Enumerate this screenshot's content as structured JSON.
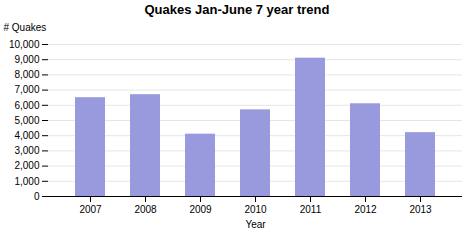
{
  "chart_data": {
    "type": "bar",
    "title": "Quakes Jan-June 7 year trend",
    "xlabel": "Year",
    "ylabel": "# Quakes",
    "categories": [
      "2007",
      "2008",
      "2009",
      "2010",
      "2011",
      "2012",
      "2013"
    ],
    "values": [
      6500,
      6700,
      4100,
      5700,
      9100,
      6100,
      4200
    ],
    "color": "#9999dd",
    "ylim": [
      0,
      10000
    ],
    "yticks": [
      0,
      {
        "value": 1000,
        "label": "1,000"
      },
      {
        "value": 2000,
        "label": "2,000"
      },
      {
        "value": 3000,
        "label": "3,000"
      },
      {
        "value": 4000,
        "label": "4,000"
      },
      {
        "value": 5000,
        "label": "5,000"
      },
      {
        "value": 6000,
        "label": "6,000"
      },
      {
        "value": 7000,
        "label": "7,000"
      },
      {
        "value": 8000,
        "label": "8,000"
      },
      {
        "value": 9000,
        "label": "9,000"
      },
      {
        "value": 10000,
        "label": "10,000"
      }
    ],
    "grid": true
  }
}
